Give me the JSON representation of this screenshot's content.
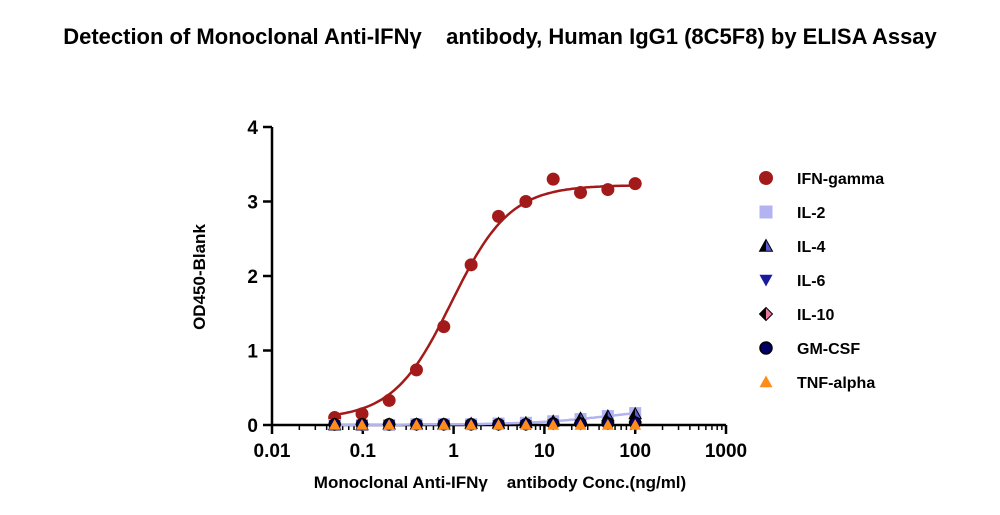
{
  "chart_data": {
    "type": "scatter",
    "title": "Detection of Monoclonal Anti-IFNγ    antibody, Human IgG1 (8C5F8) by ELISA Assay",
    "xlabel": "Monoclonal Anti-IFNγ    antibody Conc.(ng/ml)",
    "ylabel": "OD450-Blank",
    "x_scale": "log",
    "xlim": [
      0.01,
      1000
    ],
    "ylim": [
      0,
      4
    ],
    "x_ticks": [
      "0.01",
      "0.1",
      "1",
      "10",
      "100",
      "1000"
    ],
    "y_ticks": [
      "0",
      "1",
      "2",
      "3",
      "4"
    ],
    "grid": false,
    "legend_position": "right",
    "x": [
      0.049,
      0.098,
      0.195,
      0.39,
      0.78,
      1.56,
      3.125,
      6.25,
      12.5,
      25,
      50,
      100
    ],
    "series": [
      {
        "name": "IFN-gamma",
        "marker": "circle",
        "color": "#a31a1a",
        "fit_curve": true,
        "values": [
          0.1,
          0.15,
          0.33,
          0.74,
          1.32,
          2.15,
          2.8,
          3.0,
          3.3,
          3.12,
          3.16,
          3.24
        ]
      },
      {
        "name": "IL-2",
        "marker": "square",
        "color": "#b3b3f2",
        "fit_curve": true,
        "values": [
          0.0,
          0.0,
          0.0,
          0.01,
          0.01,
          0.01,
          0.02,
          0.03,
          0.05,
          0.08,
          0.12,
          0.16
        ]
      },
      {
        "name": "IL-4",
        "marker": "triangle-split",
        "color": "#5a5acd",
        "fit_curve": false,
        "values": [
          0.0,
          0.0,
          0.01,
          0.01,
          0.01,
          0.02,
          0.02,
          0.03,
          0.05,
          0.09,
          0.12,
          0.15
        ]
      },
      {
        "name": "IL-6",
        "marker": "triangle-down",
        "color": "#1a1a9e",
        "fit_curve": false,
        "values": [
          0.0,
          0.0,
          0.0,
          0.0,
          0.0,
          0.0,
          0.0,
          0.0,
          0.01,
          0.01,
          0.01,
          0.02
        ]
      },
      {
        "name": "IL-10",
        "marker": "diamond-split",
        "color": "#e87aa0",
        "fit_curve": false,
        "values": [
          0.01,
          0.01,
          0.01,
          0.01,
          0.01,
          0.01,
          0.01,
          0.01,
          0.02,
          0.02,
          0.03,
          0.04
        ]
      },
      {
        "name": "GM-CSF",
        "marker": "circle-dark",
        "color": "#000066",
        "fit_curve": false,
        "values": [
          0.01,
          0.01,
          0.01,
          0.01,
          0.01,
          0.01,
          0.01,
          0.01,
          0.02,
          0.02,
          0.02,
          0.03
        ]
      },
      {
        "name": "TNF-alpha",
        "marker": "triangle",
        "color": "#ff8c1a",
        "fit_curve": false,
        "values": [
          0.0,
          0.0,
          0.0,
          0.0,
          0.0,
          0.0,
          0.0,
          0.0,
          0.0,
          0.0,
          0.0,
          0.0
        ]
      }
    ]
  }
}
